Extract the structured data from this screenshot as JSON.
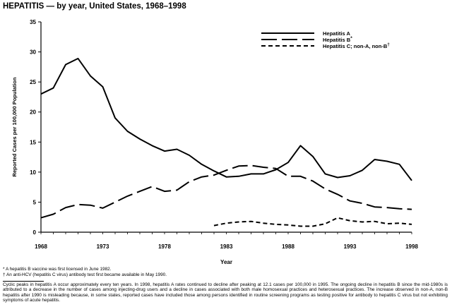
{
  "title": "HEPATITIS — by year, United States, 1968–1998",
  "chart_data": {
    "type": "line",
    "title": "HEPATITIS — by year, United States, 1968–1998",
    "xlabel": "Year",
    "ylabel": "Reported Cases per 100,000 Population",
    "xlim": [
      1968,
      1998
    ],
    "ylim": [
      0,
      35
    ],
    "xticks": [
      1968,
      1973,
      1978,
      1983,
      1988,
      1993,
      1998
    ],
    "yticks": [
      0,
      5,
      10,
      15,
      20,
      25,
      30,
      35
    ],
    "legend_position": "top-right",
    "series": [
      {
        "name": "Hepatitis A",
        "legend_label": "Hepatitis A",
        "style": "solid",
        "x": [
          1968,
          1969,
          1970,
          1971,
          1972,
          1973,
          1974,
          1975,
          1976,
          1977,
          1978,
          1979,
          1980,
          1981,
          1982,
          1983,
          1984,
          1985,
          1986,
          1987,
          1988,
          1989,
          1990,
          1991,
          1992,
          1993,
          1994,
          1995,
          1996,
          1997,
          1998
        ],
        "values": [
          23.0,
          24.0,
          27.9,
          28.9,
          26.0,
          24.2,
          19.0,
          16.8,
          15.5,
          14.4,
          13.5,
          13.8,
          12.8,
          11.3,
          10.2,
          9.2,
          9.3,
          9.7,
          9.7,
          10.4,
          11.6,
          14.4,
          12.6,
          9.7,
          9.1,
          9.4,
          10.3,
          12.1,
          11.8,
          11.3,
          8.6
        ]
      },
      {
        "name": "Hepatitis B",
        "legend_label": "Hepatitis B",
        "legend_mark": "*",
        "style": "long-dash",
        "x": [
          1968,
          1969,
          1970,
          1971,
          1972,
          1973,
          1974,
          1975,
          1976,
          1977,
          1978,
          1979,
          1980,
          1981,
          1982,
          1983,
          1984,
          1985,
          1986,
          1987,
          1988,
          1989,
          1990,
          1991,
          1992,
          1993,
          1994,
          1995,
          1996,
          1997,
          1998
        ],
        "values": [
          2.4,
          3.0,
          4.1,
          4.6,
          4.5,
          4.0,
          5.0,
          6.0,
          6.8,
          7.6,
          6.8,
          7.0,
          8.4,
          9.2,
          9.5,
          10.3,
          11.0,
          11.1,
          10.8,
          10.6,
          9.3,
          9.3,
          8.5,
          7.2,
          6.3,
          5.2,
          4.8,
          4.2,
          4.1,
          3.9,
          3.8
        ]
      },
      {
        "name": "Hepatitis C; non-A, non-B",
        "legend_label": "Hepatitis C; non-A, non-B",
        "legend_mark": "†",
        "style": "short-dash",
        "x": [
          1982,
          1983,
          1984,
          1985,
          1986,
          1987,
          1988,
          1989,
          1990,
          1991,
          1992,
          1993,
          1994,
          1995,
          1996,
          1997,
          1998
        ],
        "values": [
          1.1,
          1.5,
          1.7,
          1.8,
          1.5,
          1.3,
          1.2,
          1.0,
          1.0,
          1.4,
          2.4,
          1.9,
          1.7,
          1.8,
          1.4,
          1.5,
          1.3
        ]
      }
    ]
  },
  "footnotes": [
    {
      "mark": "*",
      "text": "A hepatitis B vaccine was first licensed in June 1982."
    },
    {
      "mark": "†",
      "text": "An anti-HCV (hepatitis C virus) antibody test first became available in May 1990."
    }
  ],
  "caption": "Cyclic peaks in hepatitis A occur approximately every ten years. In 1998, hepatitis A rates continued to decline after peaking at 12.1 cases per 100,000 in 1995. The ongoing decline in hepatitis B since the mid-1980s is attributed to a decrease in the number of cases among injecting-drug users and a decline in cases associated with both male homosexual practices and heterosexual practices. The increase observed in non-A, non-B hepatitis after 1990 is misleading because, in some states, reported cases have included those among persons identified in routine screening programs as testing positive for antibody to hepatitis C virus but not exhibiting symptoms of acute hepatitis."
}
